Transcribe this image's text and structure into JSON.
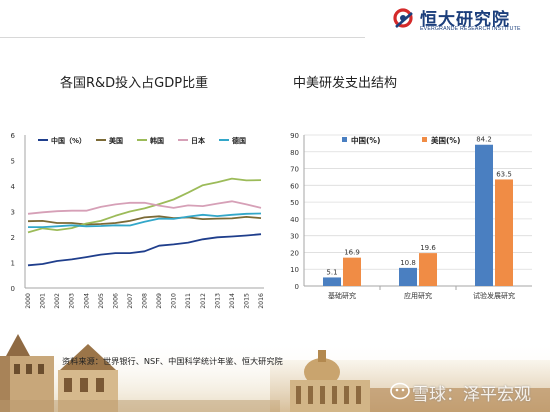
{
  "logo": {
    "name_cn": "恒大研究院",
    "name_en": "EVERGRANDE RESEARCH INSTITUTE"
  },
  "titles": {
    "left": "各国R&D投入占GDP比重",
    "right": "中美研发支出结构"
  },
  "source": "资料来源：世界银行、NSF、中国科学统计年鉴、恒大研究院",
  "watermark": "雪球：泽平宏观",
  "colors": {
    "china": "#1f3e8c",
    "us": "#7b6a36",
    "korea": "#9cbb59",
    "japan": "#d6a0b7",
    "germany": "#33a7c9",
    "bar_china": "#4a7fc1",
    "bar_us": "#f08c45"
  },
  "chart_data": [
    {
      "type": "line",
      "x": [
        "2000",
        "2001",
        "2002",
        "2003",
        "2004",
        "2005",
        "2006",
        "2007",
        "2008",
        "2009",
        "2010",
        "2011",
        "2012",
        "2013",
        "2014",
        "2015",
        "2016"
      ],
      "ylim": [
        0,
        6
      ],
      "yticks": [
        "0",
        "1",
        "2",
        "3",
        "4",
        "5",
        "6"
      ],
      "grid": false,
      "legend": "top",
      "series": [
        {
          "name": "中国（%）",
          "color": "#1f3e8c",
          "values": [
            0.89,
            0.94,
            1.06,
            1.12,
            1.21,
            1.31,
            1.37,
            1.37,
            1.44,
            1.66,
            1.71,
            1.78,
            1.91,
            1.99,
            2.02,
            2.06,
            2.11
          ]
        },
        {
          "name": "美国",
          "color": "#7b6a36",
          "values": [
            2.62,
            2.63,
            2.55,
            2.55,
            2.49,
            2.51,
            2.55,
            2.63,
            2.77,
            2.81,
            2.74,
            2.77,
            2.7,
            2.72,
            2.73,
            2.79,
            2.74
          ]
        },
        {
          "name": "韩国",
          "color": "#9cbb59",
          "values": [
            2.18,
            2.34,
            2.27,
            2.35,
            2.53,
            2.63,
            2.83,
            3.0,
            3.12,
            3.29,
            3.47,
            3.74,
            4.03,
            4.15,
            4.29,
            4.22,
            4.23
          ]
        },
        {
          "name": "日本",
          "color": "#d6a0b7",
          "values": [
            2.91,
            2.97,
            3.01,
            3.03,
            3.03,
            3.18,
            3.28,
            3.34,
            3.34,
            3.23,
            3.14,
            3.24,
            3.21,
            3.31,
            3.4,
            3.28,
            3.14
          ]
        },
        {
          "name": "德国",
          "color": "#33a7c9",
          "values": [
            2.39,
            2.39,
            2.42,
            2.46,
            2.42,
            2.43,
            2.46,
            2.45,
            2.6,
            2.72,
            2.71,
            2.8,
            2.87,
            2.82,
            2.87,
            2.91,
            2.92
          ]
        }
      ]
    },
    {
      "type": "bar",
      "categories": [
        "基础研究",
        "应用研究",
        "试验发展研究"
      ],
      "ylim": [
        0,
        90
      ],
      "yticks": [
        "0",
        "10",
        "20",
        "30",
        "40",
        "50",
        "60",
        "70",
        "80",
        "90"
      ],
      "grid": true,
      "legend": "top",
      "series": [
        {
          "name": "中国(%)",
          "color": "#4a7fc1",
          "values": [
            5.1,
            10.8,
            84.2
          ],
          "labels": [
            "5.1",
            "10.8",
            "84.2"
          ]
        },
        {
          "name": "美国(%)",
          "color": "#f08c45",
          "values": [
            16.9,
            19.6,
            63.5
          ],
          "labels": [
            "16.9",
            "19.6",
            "63.5"
          ]
        }
      ]
    }
  ]
}
